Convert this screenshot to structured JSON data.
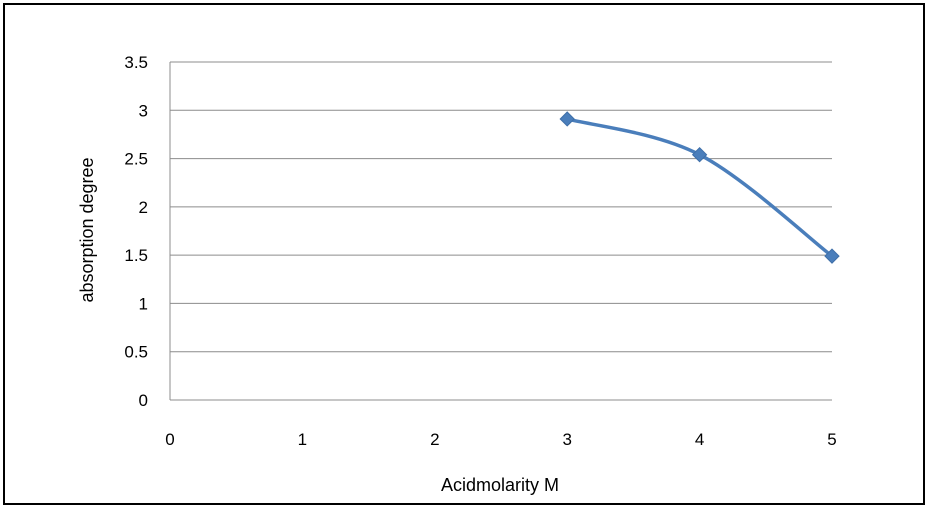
{
  "chart_data": {
    "type": "scatter",
    "title": "",
    "xlabel": "Acidmolarity M",
    "ylabel": "absorption degree",
    "xlim": [
      0,
      5
    ],
    "ylim": [
      0,
      3.5
    ],
    "x_ticks": [
      "0",
      "1",
      "2",
      "3",
      "4",
      "5"
    ],
    "y_ticks": [
      "0",
      "0.5",
      "1",
      "1.5",
      "2",
      "2.5",
      "3",
      "3.5"
    ],
    "grid": "horizontal",
    "legend": "none",
    "series": [
      {
        "x": [
          3,
          4,
          5
        ],
        "y": [
          2.91,
          2.54,
          1.49
        ],
        "color": "#4a7ebb",
        "marker": "diamond",
        "line": "smooth"
      }
    ]
  }
}
